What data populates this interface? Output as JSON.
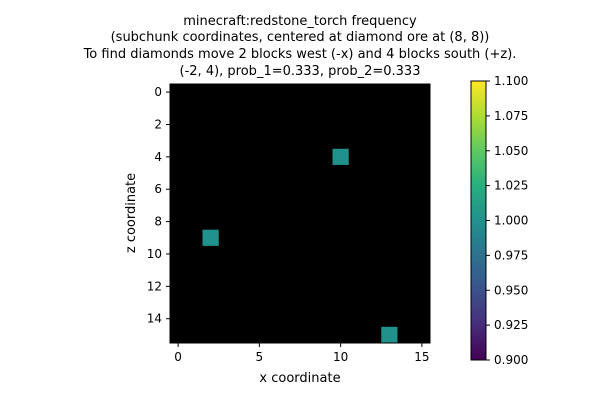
{
  "chart_data": {
    "type": "heatmap",
    "title_lines": [
      "minecraft:redstone_torch frequency",
      "(subchunk coordinates, centered at diamond ore at (8, 8))",
      "To find diamonds move 2 blocks west (-x) and 4 blocks south (+z).",
      "(-2, 4), prob_1=0.333, prob_2=0.333"
    ],
    "xlabel": "x coordinate",
    "ylabel": "z coordinate",
    "xlim": [
      -0.5,
      15.5
    ],
    "ylim": [
      15.5,
      -0.5
    ],
    "x_ticks": [
      0,
      5,
      10,
      15
    ],
    "y_ticks": [
      0,
      2,
      4,
      6,
      8,
      10,
      12,
      14
    ],
    "grid_size": [
      16,
      16
    ],
    "background_value": 0,
    "background_color": "#000000",
    "cells": [
      {
        "x": 10,
        "z": 4,
        "value": 1.0
      },
      {
        "x": 2,
        "z": 9,
        "value": 1.0
      },
      {
        "x": 13,
        "z": 15,
        "value": 1.0
      }
    ],
    "colorbar": {
      "colormap": "viridis",
      "vmin": 0.9,
      "vmax": 1.1,
      "ticks": [
        0.9,
        0.925,
        0.95,
        0.975,
        1.0,
        1.025,
        1.05,
        1.075,
        1.1
      ],
      "tick_labels": [
        "0.900",
        "0.925",
        "0.950",
        "0.975",
        "1.000",
        "1.025",
        "1.050",
        "1.075",
        "1.100"
      ]
    }
  }
}
